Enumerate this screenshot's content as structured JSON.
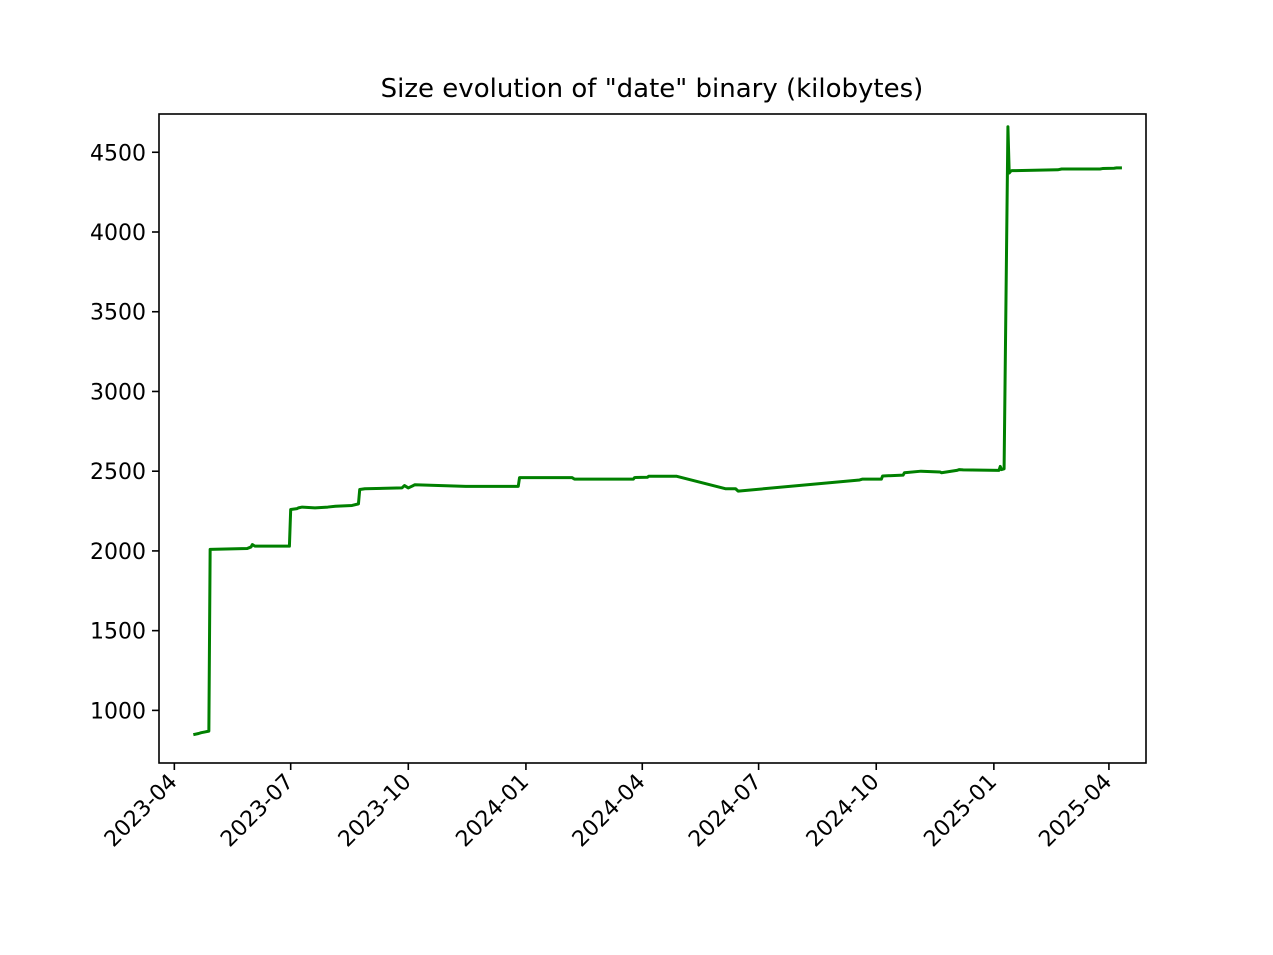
{
  "chart_data": {
    "type": "line",
    "title": "Size evolution of \"date\" binary (kilobytes)",
    "xlabel": "",
    "ylabel": "",
    "x_axis_type": "date",
    "xlim": [
      "2023-03-20",
      "2025-04-30"
    ],
    "ylim": [
      670,
      4740
    ],
    "grid": false,
    "x_ticks": [
      "2023-04",
      "2023-07",
      "2023-10",
      "2024-01",
      "2024-04",
      "2024-07",
      "2024-10",
      "2025-01",
      "2025-04"
    ],
    "y_ticks": [
      1000,
      1500,
      2000,
      2500,
      3000,
      3500,
      4000,
      4500
    ],
    "series": [
      {
        "color": "#008000",
        "x": [
          "2023-04-17",
          "2023-04-20",
          "2023-04-22",
          "2023-04-25",
          "2023-04-28",
          "2023-04-29",
          "2023-05-28",
          "2023-05-31",
          "2023-06-01",
          "2023-06-03",
          "2023-06-30",
          "2023-07-01",
          "2023-07-06",
          "2023-07-07",
          "2023-07-10",
          "2023-07-20",
          "2023-07-30",
          "2023-08-05",
          "2023-08-18",
          "2023-08-23",
          "2023-08-24",
          "2023-08-28",
          "2023-09-26",
          "2023-09-28",
          "2023-10-01",
          "2023-10-05",
          "2023-10-06",
          "2023-11-15",
          "2023-12-26",
          "2023-12-27",
          "2024-02-06",
          "2024-02-08",
          "2024-03-25",
          "2024-03-26",
          "2024-04-05",
          "2024-04-06",
          "2024-04-28",
          "2024-06-05",
          "2024-06-13",
          "2024-06-15",
          "2024-09-18",
          "2024-09-20",
          "2024-10-05",
          "2024-10-06",
          "2024-10-22",
          "2024-10-23",
          "2024-11-05",
          "2024-11-20",
          "2024-11-21",
          "2024-12-03",
          "2024-12-05",
          "2024-12-08",
          "2025-01-05",
          "2025-01-06",
          "2025-01-07",
          "2025-01-09",
          "2025-01-12",
          "2025-01-13",
          "2025-01-14",
          "2025-01-15",
          "2025-01-17",
          "2025-01-18",
          "2025-02-20",
          "2025-02-23",
          "2025-03-05",
          "2025-03-07",
          "2025-03-25",
          "2025-03-27",
          "2025-04-05",
          "2025-04-07",
          "2025-04-10"
        ],
        "values": [
          850,
          855,
          860,
          865,
          870,
          2010,
          2015,
          2025,
          2040,
          2030,
          2030,
          2260,
          2265,
          2270,
          2275,
          2270,
          2275,
          2280,
          2285,
          2295,
          2385,
          2390,
          2395,
          2410,
          2395,
          2410,
          2415,
          2405,
          2405,
          2460,
          2460,
          2450,
          2450,
          2460,
          2462,
          2468,
          2468,
          2390,
          2390,
          2375,
          2445,
          2450,
          2450,
          2470,
          2475,
          2490,
          2500,
          2495,
          2490,
          2505,
          2510,
          2508,
          2505,
          2530,
          2510,
          2515,
          4660,
          4370,
          4380,
          4385,
          4385,
          4385,
          4390,
          4395,
          4395,
          4395,
          4395,
          4398,
          4400,
          4402,
          4402
        ]
      }
    ]
  }
}
